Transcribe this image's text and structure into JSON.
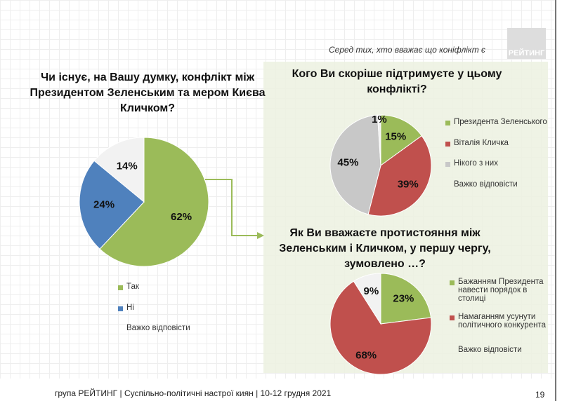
{
  "header": {
    "subtitle": "Серед тих, хто вважає що коніфлікт є",
    "logo": "РЕЙТИНГ"
  },
  "footer": {
    "text": "група РЕЙТИНГ | Суспільно-політичні настрої киян | 10-12 грудня 2021",
    "page": "19"
  },
  "colors": {
    "green": "#9bbb59",
    "red": "#c0504d",
    "blue": "#4f81bd",
    "gray": "#c8c8c8",
    "white": "#f2f2f2"
  },
  "chart_data": [
    {
      "type": "pie",
      "title": "Чи існує, на Вашу думку, конфлікт між Президентом Зеленським та мером Києва Кличком?",
      "slices": [
        {
          "label": "Так",
          "value": 62,
          "display": "62%",
          "color": "#9bbb59"
        },
        {
          "label": "Ні",
          "value": 24,
          "display": "24%",
          "color": "#4f81bd"
        },
        {
          "label": "Важко відповісти",
          "value": 14,
          "display": "14%",
          "color": "#f2f2f2"
        }
      ]
    },
    {
      "type": "pie",
      "title": "Кого Ви скоріше підтримуєте у цьому конфлікті?",
      "slices": [
        {
          "label": "Президента Зеленського",
          "value": 15,
          "display": "15%",
          "color": "#9bbb59"
        },
        {
          "label": "Віталія Кличка",
          "value": 39,
          "display": "39%",
          "color": "#c0504d"
        },
        {
          "label": "Нікого з них",
          "value": 45,
          "display": "45%",
          "color": "#c8c8c8"
        },
        {
          "label": "Важко відповісти",
          "value": 1,
          "display": "1%",
          "color": "#f2f2f2"
        }
      ]
    },
    {
      "type": "pie",
      "title": "Як Ви вважаєте протистояння між Зеленським і Кличком, у першу чергу, зумовлено …?",
      "slices": [
        {
          "label": "Бажанням Президента навести порядок в столиці",
          "value": 23,
          "display": "23%",
          "color": "#9bbb59"
        },
        {
          "label": "Намаганням усунути політичного конкурента",
          "value": 68,
          "display": "68%",
          "color": "#c0504d"
        },
        {
          "label": "Важко відповісти",
          "value": 9,
          "display": "9%",
          "color": "#f2f2f2"
        }
      ]
    }
  ]
}
